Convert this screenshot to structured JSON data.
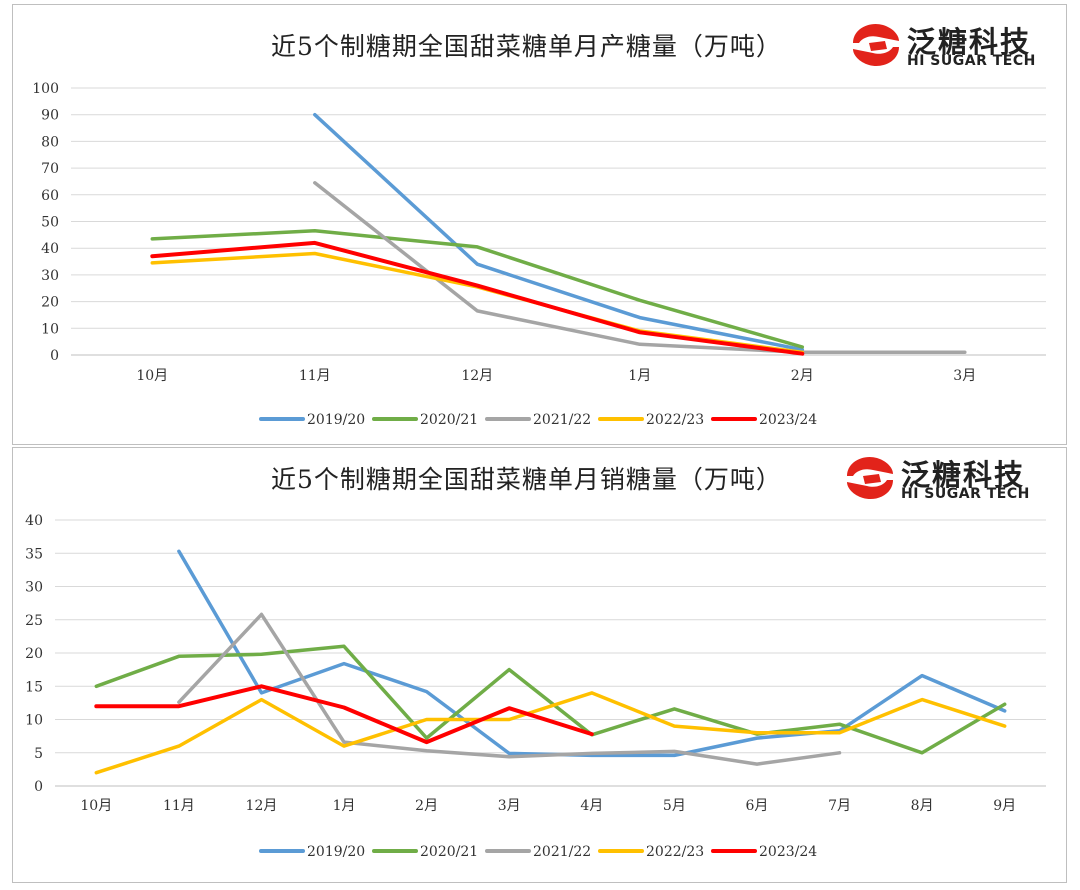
{
  "brand": {
    "name_cn": "泛糖科技",
    "name_en": "HI SUGAR TECH",
    "logo_color": "#e2231a"
  },
  "chart_data": [
    {
      "type": "line",
      "title": "近5个制糖期全国甜菜糖单月产糖量（万吨）",
      "categories": [
        "10月",
        "11月",
        "12月",
        "1月",
        "2月",
        "3月"
      ],
      "ylim": [
        0,
        100
      ],
      "yticks": [
        0,
        10,
        20,
        30,
        40,
        50,
        60,
        70,
        80,
        90,
        100
      ],
      "grid": true,
      "legend": "bottom",
      "series": [
        {
          "name": "2019/20",
          "color": "#5b9bd5",
          "values": [
            null,
            90,
            34,
            14,
            2,
            null
          ]
        },
        {
          "name": "2020/21",
          "color": "#70ad47",
          "values": [
            43.5,
            46.5,
            40.5,
            20.5,
            3,
            null
          ]
        },
        {
          "name": "2021/22",
          "color": "#a5a5a5",
          "values": [
            null,
            64.5,
            16.5,
            4,
            1,
            1
          ]
        },
        {
          "name": "2022/23",
          "color": "#ffc000",
          "values": [
            34.5,
            38,
            25.5,
            9,
            1,
            null
          ]
        },
        {
          "name": "2023/24",
          "color": "#ff0000",
          "values": [
            37,
            42,
            26,
            8.5,
            0.5,
            null
          ]
        }
      ]
    },
    {
      "type": "line",
      "title": "近5个制糖期全国甜菜糖单月销糖量（万吨）",
      "categories": [
        "10月",
        "11月",
        "12月",
        "1月",
        "2月",
        "3月",
        "4月",
        "5月",
        "6月",
        "7月",
        "8月",
        "9月"
      ],
      "ylim": [
        0,
        40
      ],
      "yticks": [
        0,
        5,
        10,
        15,
        20,
        25,
        30,
        35,
        40
      ],
      "grid": true,
      "legend": "bottom",
      "series": [
        {
          "name": "2019/20",
          "color": "#5b9bd5",
          "values": [
            null,
            35.3,
            14,
            18.4,
            14.2,
            4.9,
            4.6,
            4.6,
            7.2,
            8.3,
            16.6,
            11.3
          ]
        },
        {
          "name": "2020/21",
          "color": "#70ad47",
          "values": [
            15,
            19.5,
            19.8,
            21,
            7.2,
            17.5,
            7.7,
            11.6,
            7.8,
            9.3,
            5,
            12.3
          ]
        },
        {
          "name": "2021/22",
          "color": "#a5a5a5",
          "values": [
            null,
            12.6,
            25.8,
            6.6,
            5.3,
            4.4,
            4.9,
            5.2,
            3.3,
            5,
            null,
            null
          ]
        },
        {
          "name": "2022/23",
          "color": "#ffc000",
          "values": [
            2,
            6,
            13,
            6,
            10,
            10,
            14,
            9,
            8,
            8,
            13,
            9
          ]
        },
        {
          "name": "2023/24",
          "color": "#ff0000",
          "values": [
            12,
            12,
            15,
            11.8,
            6.6,
            11.7,
            7.8,
            null,
            null,
            null,
            null,
            null
          ]
        }
      ]
    }
  ]
}
